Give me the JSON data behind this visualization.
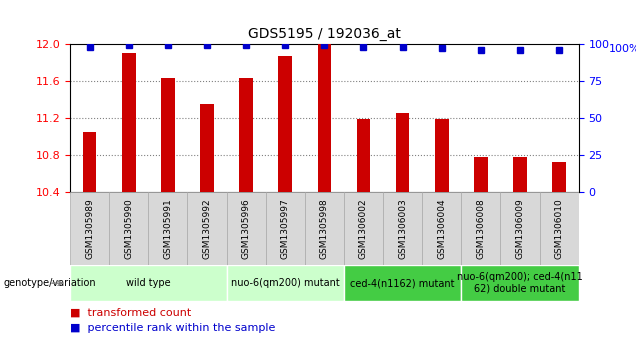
{
  "title": "GDS5195 / 192036_at",
  "samples": [
    "GSM1305989",
    "GSM1305990",
    "GSM1305991",
    "GSM1305992",
    "GSM1305996",
    "GSM1305997",
    "GSM1305998",
    "GSM1306002",
    "GSM1306003",
    "GSM1306004",
    "GSM1306008",
    "GSM1306009",
    "GSM1306010"
  ],
  "bar_values": [
    11.05,
    11.9,
    11.63,
    11.35,
    11.63,
    11.87,
    12.0,
    11.19,
    11.25,
    11.19,
    10.78,
    10.78,
    10.73
  ],
  "percentile_values": [
    98,
    99,
    99,
    99,
    99,
    99,
    99,
    98,
    98,
    97,
    96,
    96,
    96
  ],
  "ylim_left": [
    10.4,
    12.0
  ],
  "ylim_right": [
    0,
    100
  ],
  "yticks_left": [
    10.4,
    10.8,
    11.2,
    11.6,
    12.0
  ],
  "yticks_right": [
    0,
    25,
    50,
    75,
    100
  ],
  "bar_color": "#CC0000",
  "dot_color": "#0000CC",
  "groups": [
    {
      "label": "wild type",
      "start": 0,
      "end": 3,
      "color": "#ccffcc"
    },
    {
      "label": "nuo-6(qm200) mutant",
      "start": 4,
      "end": 6,
      "color": "#ccffcc"
    },
    {
      "label": "ced-4(n1162) mutant",
      "start": 7,
      "end": 9,
      "color": "#44cc44"
    },
    {
      "label": "nuo-6(qm200); ced-4(n11\n62) double mutant",
      "start": 10,
      "end": 12,
      "color": "#44cc44"
    }
  ],
  "genotype_label": "genotype/variation",
  "legend_bar_label": "transformed count",
  "legend_dot_label": "percentile rank within the sample",
  "sample_label_bg": "#d8d8d8",
  "sample_label_border": "#aaaaaa",
  "grid_color": "#888888",
  "axis_bg": "#ffffff"
}
